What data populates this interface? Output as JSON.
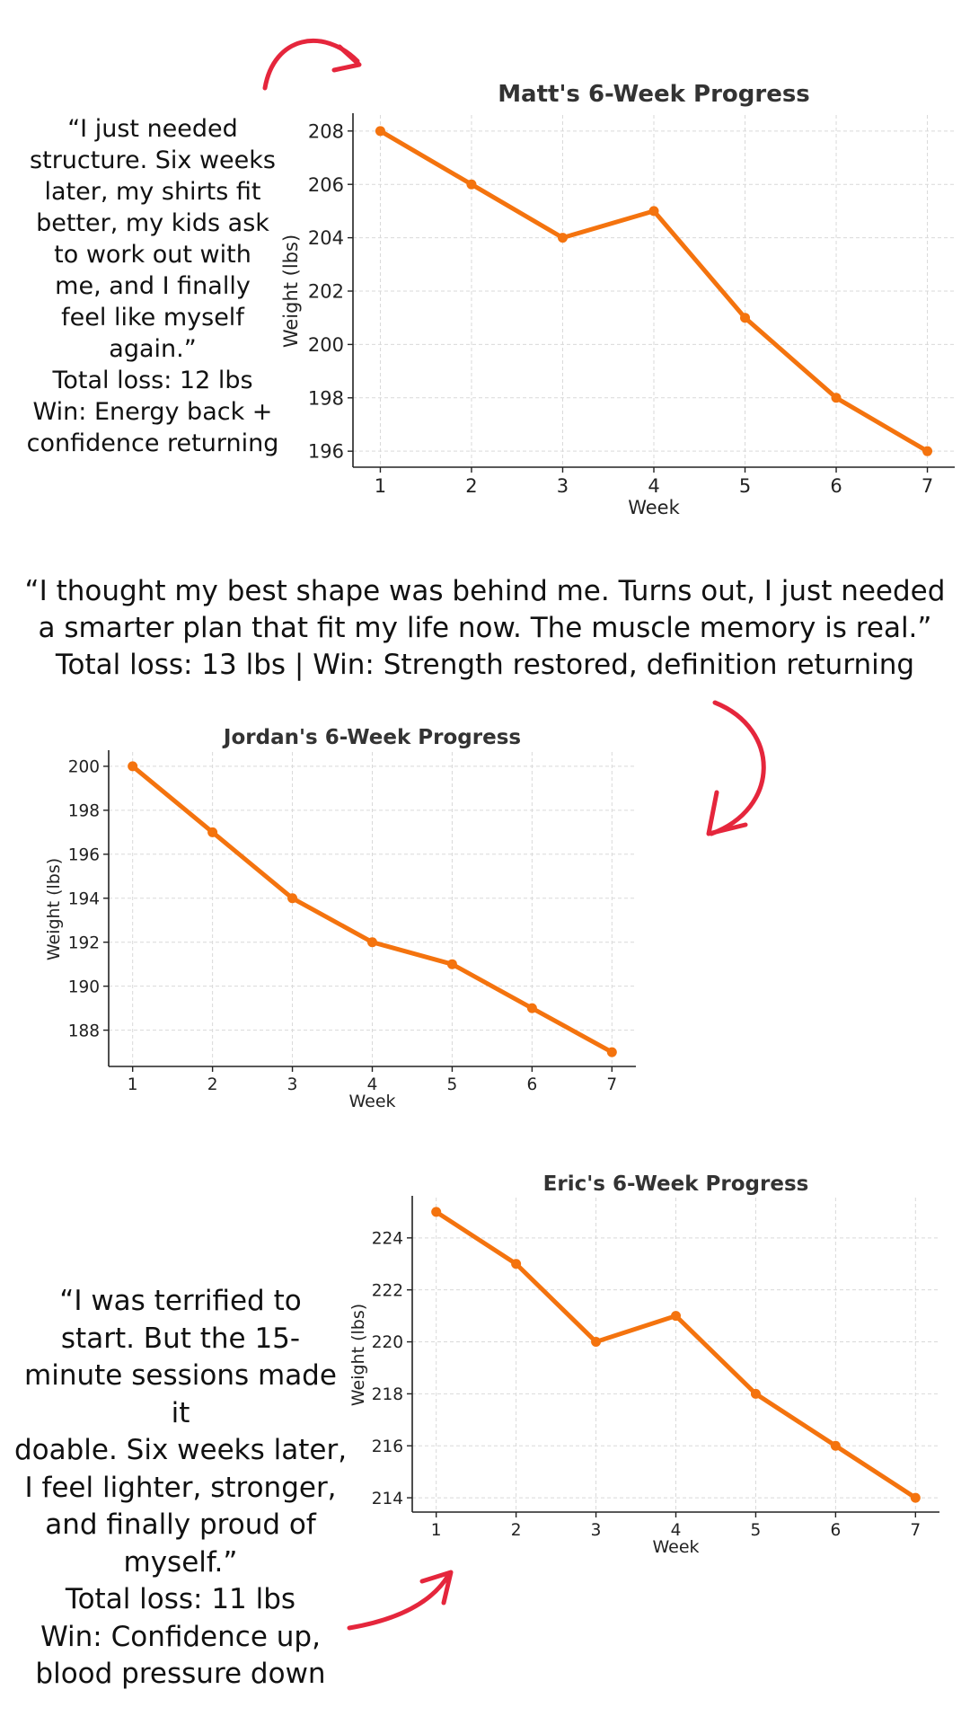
{
  "colors": {
    "series": "#F4730E",
    "arrow": "#E5263C"
  },
  "quotes": {
    "matt": {
      "lines": [
        "“I just needed",
        "structure. Six weeks",
        "later, my shirts fit",
        "better, my kids ask",
        "to work out with",
        "me, and I finally",
        "feel like myself",
        "again.”",
        "Total loss: 12 lbs",
        "Win: Energy back +",
        "confidence returning"
      ]
    },
    "jordan": {
      "lines": [
        "“I thought my best shape was behind me. Turns out, I just needed",
        "a smarter plan that fit my life now. The muscle memory is real.”",
        "Total loss: 13 lbs | Win: Strength restored, definition returning"
      ]
    },
    "eric": {
      "lines": [
        "“I was terrified to",
        "start. But the 15-",
        "minute sessions made it",
        "doable. Six weeks later,",
        "I feel lighter, stronger,",
        "and finally proud of",
        "myself.”",
        "Total loss: 11 lbs",
        "Win: Confidence up,",
        "blood pressure down"
      ]
    }
  },
  "arrows": [
    "curved-arrow-right",
    "curved-arrow-down",
    "curved-arrow-up-right"
  ],
  "chart_data": [
    {
      "type": "line",
      "title": "Matt's 6-Week Progress",
      "xlabel": "Week",
      "ylabel": "Weight (lbs)",
      "x": [
        1,
        2,
        3,
        4,
        5,
        6,
        7
      ],
      "series": [
        {
          "values": [
            208,
            206,
            204,
            205,
            201,
            198,
            196
          ]
        }
      ],
      "xticks": [
        1,
        2,
        3,
        4,
        5,
        6,
        7
      ],
      "yticks": [
        196,
        198,
        200,
        202,
        204,
        206,
        208
      ],
      "xlim": [
        0.7,
        7.3
      ],
      "ylim": [
        195.4,
        208.6
      ],
      "grid": true,
      "markers": true
    },
    {
      "type": "line",
      "title": "Jordan's 6-Week Progress",
      "xlabel": "Week",
      "ylabel": "Weight (lbs)",
      "x": [
        1,
        2,
        3,
        4,
        5,
        6,
        7
      ],
      "series": [
        {
          "values": [
            200,
            197,
            194,
            192,
            191,
            189,
            187
          ]
        }
      ],
      "xticks": [
        1,
        2,
        3,
        4,
        5,
        6,
        7
      ],
      "yticks": [
        188,
        190,
        192,
        194,
        196,
        198,
        200
      ],
      "xlim": [
        0.7,
        7.3
      ],
      "ylim": [
        186.35,
        200.65
      ],
      "grid": true,
      "markers": true
    },
    {
      "type": "line",
      "title": "Eric's 6-Week Progress",
      "xlabel": "Week",
      "ylabel": "Weight (lbs)",
      "x": [
        1,
        2,
        3,
        4,
        5,
        6,
        7
      ],
      "series": [
        {
          "values": [
            225,
            223,
            220,
            221,
            218,
            216,
            214
          ]
        }
      ],
      "xticks": [
        1,
        2,
        3,
        4,
        5,
        6,
        7
      ],
      "yticks": [
        214,
        216,
        218,
        220,
        222,
        224
      ],
      "xlim": [
        0.7,
        7.3
      ],
      "ylim": [
        213.45,
        225.55
      ],
      "grid": true,
      "markers": true
    }
  ]
}
